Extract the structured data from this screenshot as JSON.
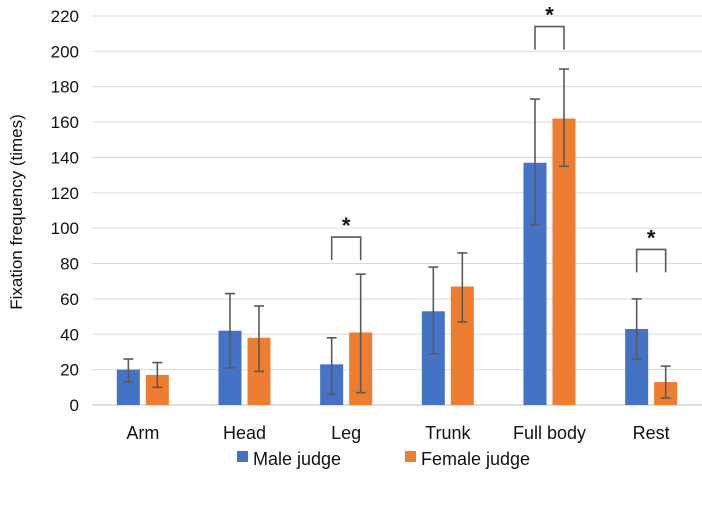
{
  "chart_data": {
    "type": "bar",
    "title": "",
    "xlabel": "",
    "ylabel": "Fixation frequency (times)",
    "ylim": [
      0,
      220
    ],
    "yticks": [
      0,
      20,
      40,
      60,
      80,
      100,
      120,
      140,
      160,
      180,
      200,
      220
    ],
    "grid": true,
    "legend_position": "bottom",
    "categories": [
      "Arm",
      "Head",
      "Leg",
      "Trunk",
      "Full body",
      "Rest"
    ],
    "series": [
      {
        "name": "Male judge",
        "color": "#4472C4",
        "values": [
          20,
          42,
          23,
          53,
          137,
          43
        ],
        "error_low": [
          13,
          21,
          6,
          29,
          102,
          26
        ],
        "error_high": [
          26,
          63,
          38,
          78,
          173,
          60
        ]
      },
      {
        "name": "Female judge",
        "color": "#ED7D31",
        "values": [
          17,
          38,
          41,
          67,
          162,
          13
        ],
        "error_low": [
          10,
          19,
          7,
          47,
          135,
          4
        ],
        "error_high": [
          24,
          56,
          74,
          86,
          190,
          22
        ]
      }
    ],
    "significance": [
      {
        "category": "Leg",
        "label": "*",
        "bracket_y": 95
      },
      {
        "category": "Full body",
        "label": "*",
        "bracket_y": 214
      },
      {
        "category": "Rest",
        "label": "*",
        "bracket_y": 88
      }
    ]
  }
}
